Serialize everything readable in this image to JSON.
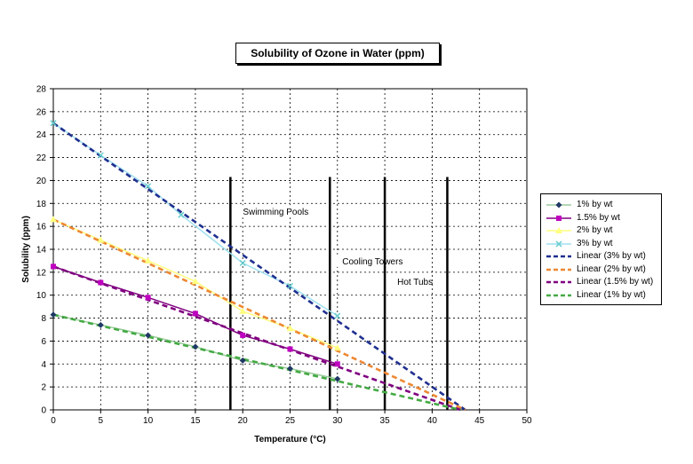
{
  "chart_data": {
    "type": "line",
    "title": "Solubility of Ozone in Water (ppm)",
    "xlabel": "Temperature (°C)",
    "ylabel": "Solubility (ppm)",
    "xlim": [
      0,
      50
    ],
    "ylim": [
      0,
      28
    ],
    "xticks": [
      0,
      5,
      10,
      15,
      20,
      25,
      30,
      35,
      40,
      45,
      50
    ],
    "yticks": [
      0,
      2,
      4,
      6,
      8,
      10,
      12,
      14,
      16,
      18,
      20,
      22,
      24,
      26,
      28
    ],
    "grid": true,
    "legend_position": "right",
    "series": [
      {
        "name": "1% by wt",
        "color": "#1f3864",
        "marker": "diamond",
        "line_color": "#9ccc9c",
        "x": [
          0,
          5,
          10,
          15,
          20,
          25,
          30
        ],
        "y": [
          8.3,
          7.4,
          6.5,
          5.5,
          4.3,
          3.6,
          2.7
        ]
      },
      {
        "name": "1.5% by wt",
        "color": "#c000c0",
        "marker": "square",
        "line_color": "#800080",
        "x": [
          0,
          5,
          10,
          15,
          20,
          25,
          30
        ],
        "y": [
          12.5,
          11.1,
          9.8,
          8.4,
          6.5,
          5.3,
          4.0
        ]
      },
      {
        "name": "2% by wt",
        "color": "#ffff80",
        "marker": "triangle",
        "line_color": "#ffff80",
        "x": [
          0,
          5,
          10,
          15,
          20,
          25,
          30
        ],
        "y": [
          16.6,
          14.8,
          13.0,
          11.2,
          8.6,
          7.1,
          5.4
        ]
      },
      {
        "name": "3% by wt",
        "color": "#66cccc",
        "marker": "x",
        "line_color": "#9fe0f0",
        "x": [
          0,
          5,
          10,
          13.5,
          20,
          25,
          30
        ],
        "y": [
          25.0,
          22.2,
          19.5,
          17.0,
          12.8,
          10.8,
          8.2
        ]
      }
    ],
    "trendlines": [
      {
        "name": "Linear (3% by wt)",
        "color": "#1f2f8f",
        "x": [
          0,
          43.5
        ],
        "y": [
          25.0,
          0
        ]
      },
      {
        "name": "Linear (2% by wt)",
        "color": "#ee8833",
        "x": [
          0,
          43.5
        ],
        "y": [
          16.6,
          0
        ]
      },
      {
        "name": "Linear (1.5% by wt)",
        "color": "#800080",
        "x": [
          0,
          43
        ],
        "y": [
          12.5,
          0
        ]
      },
      {
        "name": "Linear (1% by wt)",
        "color": "#44aa44",
        "x": [
          0,
          43
        ],
        "y": [
          8.3,
          0
        ]
      }
    ],
    "markers": [
      {
        "x": 18.7,
        "label": "Swimming Pools",
        "label_y": 17
      },
      {
        "x": 29.2,
        "label": "Cooling Towers",
        "label_y": 12.7
      },
      {
        "x": 35.0,
        "label": "Hot Tubs",
        "label_y": 10.9
      },
      {
        "x": 41.6,
        "label": "",
        "label_y": 0
      }
    ]
  }
}
